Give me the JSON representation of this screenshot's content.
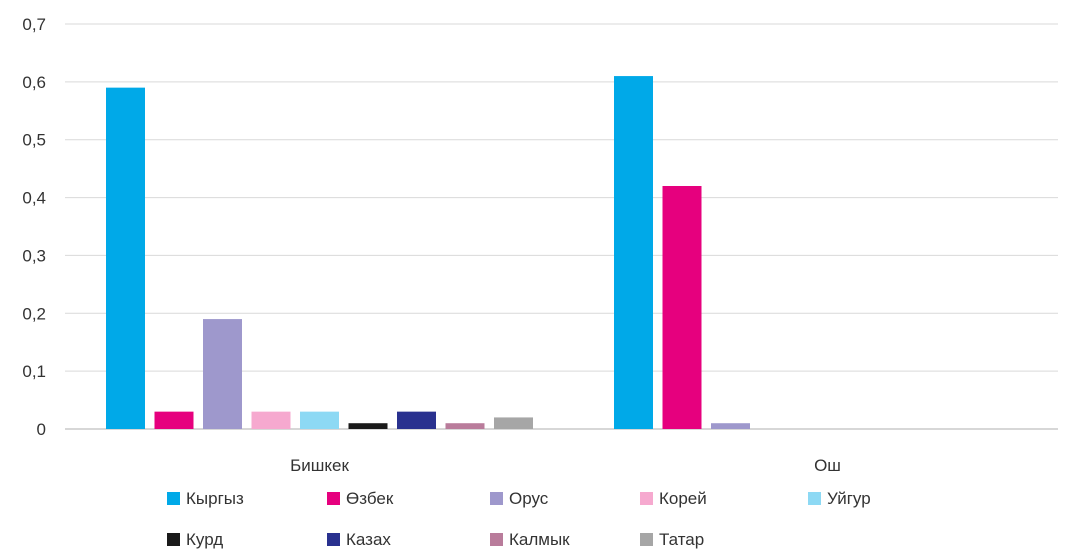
{
  "chart_data": {
    "type": "bar",
    "title": "",
    "xlabel": "",
    "ylabel": "",
    "ylim": [
      0,
      0.7
    ],
    "yticks": [
      "0",
      "0,1",
      "0,2",
      "0,3",
      "0,4",
      "0,5",
      "0,6",
      "0,7"
    ],
    "grid": true,
    "legend_position": "bottom",
    "categories": [
      "Бишкек",
      "Ош"
    ],
    "series": [
      {
        "name": "Кыргыз",
        "color": "#00a9e8",
        "values": [
          0.59,
          0.61
        ]
      },
      {
        "name": "Өзбек",
        "color": "#e6007e",
        "values": [
          0.03,
          0.42
        ]
      },
      {
        "name": "Орус",
        "color": "#9e98cc",
        "values": [
          0.19,
          0.01
        ]
      },
      {
        "name": "Корей",
        "color": "#f6a9cf",
        "values": [
          0.03,
          0
        ]
      },
      {
        "name": "Уйгур",
        "color": "#8dd9f4",
        "values": [
          0.03,
          0
        ]
      },
      {
        "name": "Курд",
        "color": "#1a1a1a",
        "values": [
          0.01,
          0
        ]
      },
      {
        "name": "Казах",
        "color": "#29318f",
        "values": [
          0.03,
          0
        ]
      },
      {
        "name": "Калмык",
        "color": "#b97c9b",
        "values": [
          0.01,
          0
        ]
      },
      {
        "name": "Татар",
        "color": "#a6a6a6",
        "values": [
          0.02,
          0
        ]
      }
    ]
  }
}
